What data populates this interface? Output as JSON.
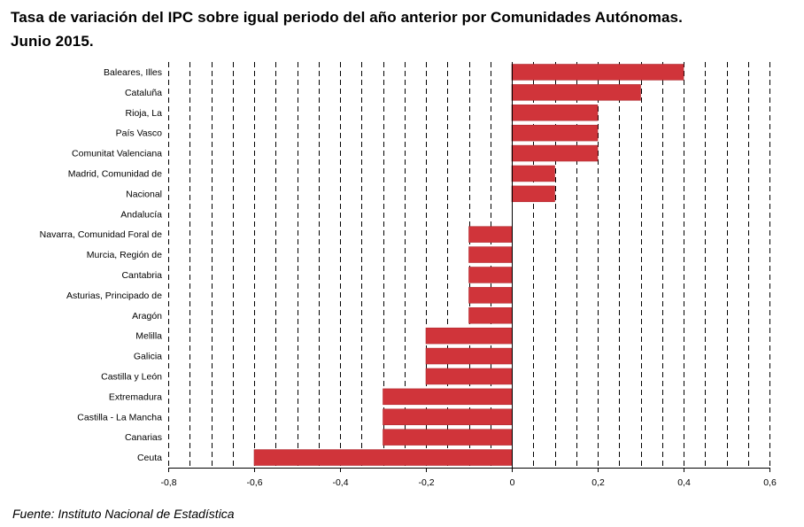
{
  "title": {
    "line1": "Tasa de variación del IPC sobre igual periodo del año anterior por Comunidades Autónomas.",
    "line2": "Junio 2015."
  },
  "source": "Fuente: Instituto Nacional de Estadística",
  "colors": {
    "bar": "#D0343A",
    "bar_edge": "#B02A2F",
    "gridline": "#000000",
    "axis": "#000000"
  },
  "chart_data": {
    "type": "bar",
    "orientation": "horizontal",
    "title": "Tasa de variación del IPC sobre igual periodo del año anterior por Comunidades Autónomas. Junio 2015.",
    "xlabel": "",
    "ylabel": "",
    "xlim": [
      -0.8,
      0.6
    ],
    "x_ticks": [
      -0.8,
      -0.6,
      -0.4,
      -0.2,
      0,
      0.2,
      0.4,
      0.6
    ],
    "x_tick_labels": [
      "-0,8",
      "-0,6",
      "-0,4",
      "-0,2",
      "0",
      "0,2",
      "0,4",
      "0,6"
    ],
    "grid": "vertical dashed",
    "legend": "none",
    "categories": [
      "Baleares, Illes",
      "Cataluña",
      "Rioja, La",
      "País Vasco",
      "Comunitat Valenciana",
      "Madrid, Comunidad de",
      "Nacional",
      "Andalucía",
      "Navarra, Comunidad Foral de",
      "Murcia, Región de",
      "Cantabria",
      "Asturias, Principado de",
      "Aragón",
      "Melilla",
      "Galicia",
      "Castilla y León",
      "Extremadura",
      "Castilla - La Mancha",
      "Canarias",
      "Ceuta"
    ],
    "values": [
      0.4,
      0.3,
      0.2,
      0.2,
      0.2,
      0.1,
      0.1,
      0.0,
      -0.1,
      -0.1,
      -0.1,
      -0.1,
      -0.1,
      -0.2,
      -0.2,
      -0.2,
      -0.3,
      -0.3,
      -0.3,
      -0.6
    ]
  }
}
